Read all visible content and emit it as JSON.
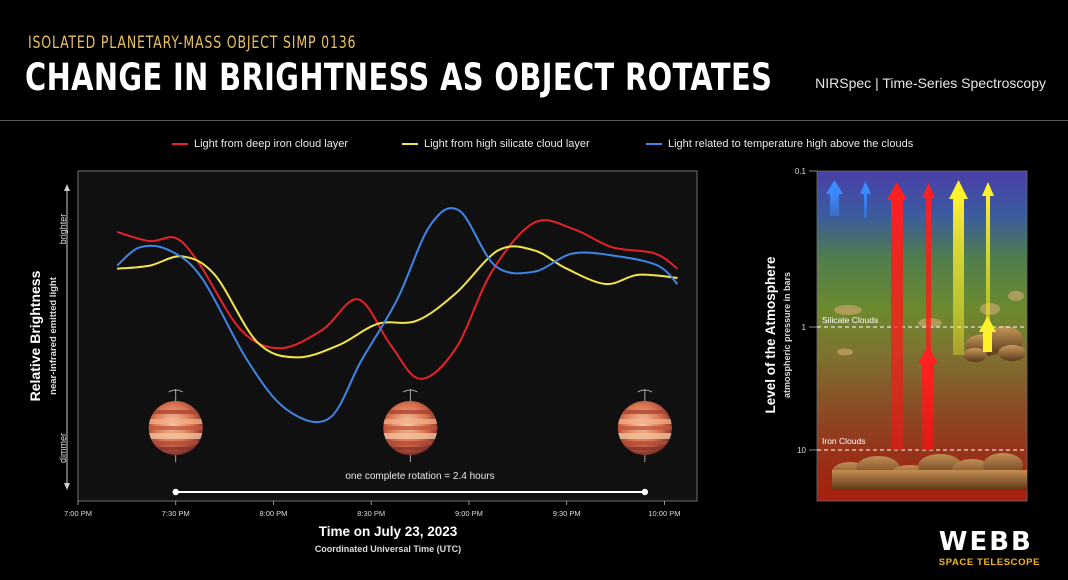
{
  "header": {
    "subtitle": "ISOLATED PLANETARY-MASS OBJECT SIMP 0136",
    "title": "CHANGE IN BRIGHTNESS AS OBJECT ROTATES",
    "instrument": "NIRSpec | Time-Series Spectroscopy"
  },
  "colors": {
    "iron": "#e5222a",
    "silicate": "#f4e64a",
    "temperature": "#3f86e6"
  },
  "chart_data": [
    {
      "type": "line",
      "xlabel": "Time on July 23, 2023",
      "xlabel_sub": "Coordinated Universal Time (UTC)",
      "ylabel": "Relative Brightness",
      "ylabel_sub": "near-infrared emitted light",
      "y_top_label": "brighter",
      "y_bottom_label": "dimmer",
      "x_ticks": [
        "7:00 PM",
        "7:30 PM",
        "8:00 PM",
        "8:30 PM",
        "9:00 PM",
        "9:30 PM",
        "10:00 PM"
      ],
      "x_tick_minutes": [
        0,
        30,
        60,
        90,
        120,
        150,
        180
      ],
      "xlim": [
        0,
        190
      ],
      "ylim": [
        0,
        1
      ],
      "rotation_annotation": "one complete rotation = 2.4 hours",
      "rotation_span_minutes": [
        30,
        174
      ],
      "object_image_minutes": [
        30,
        102,
        174
      ],
      "series": [
        {
          "name": "Light from deep iron cloud layer",
          "color_key": "iron",
          "x": [
            12,
            22,
            30,
            37,
            50,
            62,
            75,
            86,
            96,
            105,
            116,
            127,
            140,
            152,
            164,
            177,
            184
          ],
          "y": [
            0.84,
            0.81,
            0.82,
            0.74,
            0.52,
            0.46,
            0.52,
            0.62,
            0.47,
            0.36,
            0.46,
            0.71,
            0.87,
            0.85,
            0.79,
            0.77,
            0.72
          ]
        },
        {
          "name": "Light from high silicate cloud layer",
          "color_key": "silicate",
          "x": [
            12,
            22,
            32,
            42,
            55,
            67,
            80,
            92,
            104,
            116,
            129,
            140,
            150,
            162,
            172,
            184
          ],
          "y": [
            0.72,
            0.73,
            0.76,
            0.7,
            0.48,
            0.43,
            0.47,
            0.54,
            0.55,
            0.64,
            0.78,
            0.78,
            0.72,
            0.67,
            0.7,
            0.69
          ]
        },
        {
          "name": "Light related to temperature high above the clouds",
          "color_key": "temperature",
          "x": [
            12,
            19,
            28,
            38,
            52,
            64,
            77,
            87,
            98,
            108,
            117,
            128,
            140,
            152,
            166,
            178,
            184
          ],
          "y": [
            0.73,
            0.79,
            0.78,
            0.69,
            0.42,
            0.26,
            0.23,
            0.42,
            0.62,
            0.86,
            0.91,
            0.73,
            0.71,
            0.77,
            0.76,
            0.73,
            0.67
          ]
        }
      ]
    },
    {
      "type": "diagram",
      "ylabel": "Level of the Atmosphere",
      "ylabel_sub": "atmospheric pressure in bars",
      "y_scale": "log",
      "y_ticks": [
        "0.1",
        "1",
        "10"
      ],
      "y_tick_values": [
        0.1,
        1,
        10
      ],
      "layers": [
        {
          "label": "Silicate Clouds",
          "pressure": 1
        },
        {
          "label": "Iron Clouds",
          "pressure": 10
        }
      ]
    }
  ],
  "logo": {
    "main": "WEBB",
    "sub": "SPACE TELESCOPE"
  }
}
